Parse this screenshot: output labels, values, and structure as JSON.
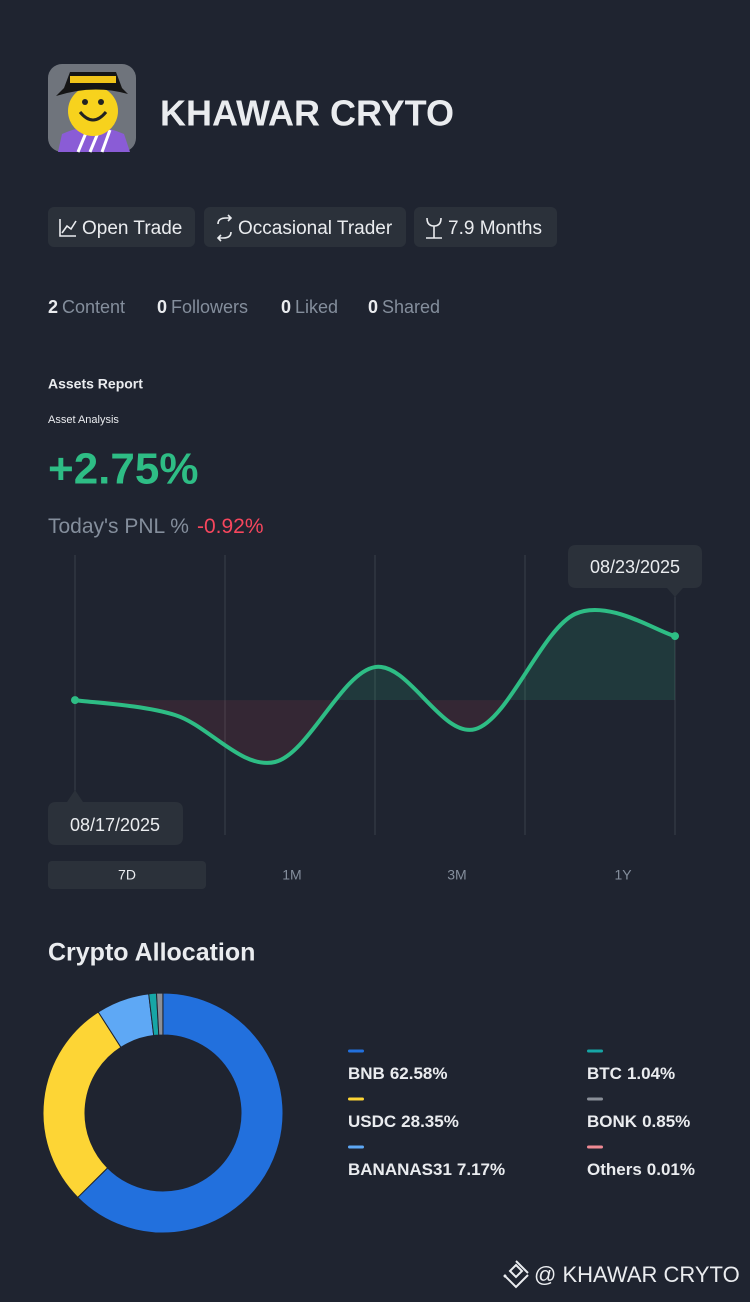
{
  "profile": {
    "name": "KHAWAR CRYTO",
    "tags": [
      "Open Trade",
      "Occasional Trader",
      "7.9 Months"
    ],
    "stats": [
      {
        "count": 2,
        "label": "Content"
      },
      {
        "count": 0,
        "label": "Followers"
      },
      {
        "count": 0,
        "label": "Liked"
      },
      {
        "count": 0,
        "label": "Shared"
      }
    ]
  },
  "assets_report": {
    "title": "Assets Report",
    "subtitle": "Asset Analysis",
    "return": "+2.75%",
    "pnl_label": "Today's PNL %",
    "pnl_value": "-0.92%",
    "periods": [
      "7D",
      "1M",
      "3M",
      "1Y"
    ],
    "active_period": 0
  },
  "chart_data": [
    {
      "type": "line",
      "x": [
        "08/17/2025",
        null,
        null,
        null,
        null,
        null,
        "08/23/2025"
      ],
      "series": [
        {
          "color": "#2ebd85",
          "values": [
            0,
            -0.64,
            -2.66,
            1.42,
            -1.25,
            3.7,
            2.75
          ]
        }
      ]
    },
    {
      "type": "pie",
      "title": "Crypto Allocation",
      "categories": [
        "BNB",
        "USDC",
        "BANANAS31",
        "BTC",
        "BONK",
        "Others"
      ],
      "values": [
        62.58,
        28.35,
        7.17,
        1.04,
        0.85,
        0.01
      ],
      "value_labels": [
        "62.58%",
        "28.35%",
        "7.17%",
        "1.04%",
        "0.85%",
        "0.01%"
      ],
      "colors": [
        "#2270dd",
        "#fdd535",
        "#5ea8f5",
        "#16a6a6",
        "#8a8f98",
        "#f08a94"
      ]
    }
  ],
  "watermark": "@ KHAWAR CRYTO"
}
